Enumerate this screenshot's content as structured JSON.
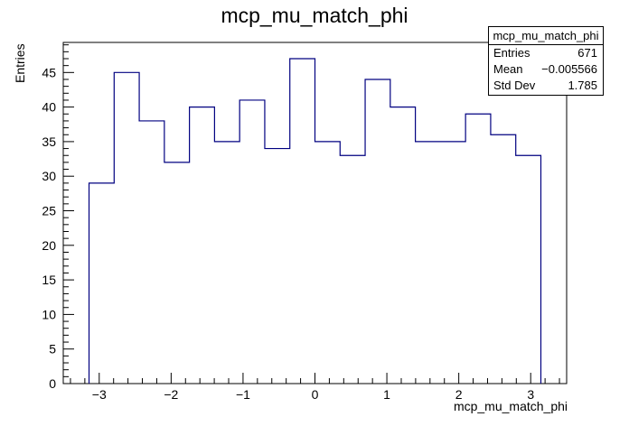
{
  "chart_data": {
    "type": "bar",
    "title": "mcp_mu_match_phi",
    "xlabel": "mcp_mu_match_phi",
    "ylabel": "Entries",
    "xlim": [
      -3.5,
      3.5
    ],
    "ylim": [
      0,
      49.35
    ],
    "bin_edges": [
      -3.1416,
      -2.7925,
      -2.4435,
      -2.0944,
      -1.7453,
      -1.3963,
      -1.0472,
      -0.6981,
      -0.3491,
      0.0,
      0.3491,
      0.6981,
      1.0472,
      1.3963,
      1.7453,
      2.0944,
      2.4435,
      2.7925,
      3.1416
    ],
    "values": [
      29,
      45,
      38,
      32,
      40,
      35,
      41,
      34,
      47,
      35,
      33,
      44,
      40,
      35,
      35,
      39,
      36,
      33
    ],
    "x_ticks": [
      "−3",
      "−2",
      "−1",
      "0",
      "1",
      "2",
      "3"
    ],
    "x_tick_values": [
      -3,
      -2,
      -1,
      0,
      1,
      2,
      3
    ],
    "y_ticks": [
      "0",
      "5",
      "10",
      "15",
      "20",
      "25",
      "30",
      "35",
      "40",
      "45"
    ],
    "y_tick_values": [
      0,
      5,
      10,
      15,
      20,
      25,
      30,
      35,
      40,
      45
    ],
    "line_color": "#000080",
    "stats": {
      "name": "mcp_mu_match_phi",
      "rows": [
        {
          "key": "Entries",
          "value": "671"
        },
        {
          "key": "Mean",
          "value": "−0.005566"
        },
        {
          "key": "Std Dev",
          "value": "1.785"
        }
      ]
    }
  }
}
